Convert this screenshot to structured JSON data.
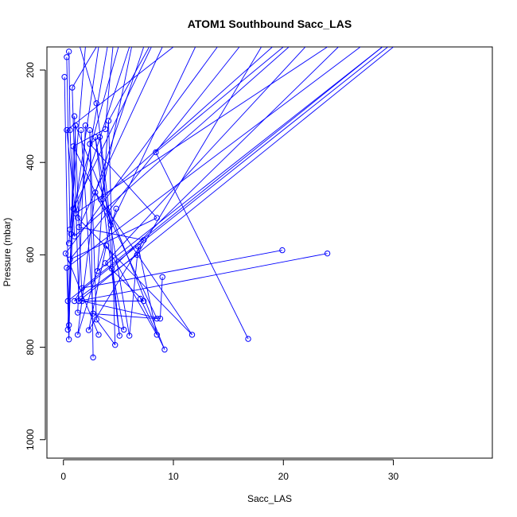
{
  "chart_data": {
    "type": "line",
    "title": "ATOM1 Southbound Sacc_LAS",
    "xlabel": "Sacc_LAS",
    "ylabel": "Pressure (mbar)",
    "xlim": [
      -1.5,
      39
    ],
    "ylim": [
      1040,
      150
    ],
    "y_axis_inverted": true,
    "x_ticks": [
      0,
      10,
      20,
      30
    ],
    "y_ticks": [
      200,
      400,
      600,
      800,
      1000
    ],
    "grid": false,
    "legend": "none",
    "color": "#0000ff",
    "marker": "open-circle",
    "series": [
      {
        "points": [
          [
            0.3,
            172
          ],
          [
            0.8,
            238
          ],
          [
            0.1,
            215
          ],
          [
            0.3,
            330
          ],
          [
            1.1,
            320
          ],
          [
            0.6,
            330
          ],
          [
            1.0,
            300
          ],
          [
            2.0,
            320
          ],
          [
            1.6,
            330
          ],
          [
            2.4,
            330
          ],
          [
            3.0,
            272
          ],
          [
            2.9,
            345
          ],
          [
            3.3,
            345
          ],
          [
            4.1,
            310
          ],
          [
            3.8,
            328
          ],
          [
            0.9,
            365
          ],
          [
            2.4,
            360
          ],
          [
            8.4,
            378
          ],
          [
            0.5,
            575
          ],
          [
            0.7,
            555
          ],
          [
            1.3,
            520
          ],
          [
            0.9,
            500
          ],
          [
            1.1,
            510
          ],
          [
            0.6,
            545
          ],
          [
            1.0,
            560
          ],
          [
            1.4,
            540
          ],
          [
            3.4,
            480
          ],
          [
            4.8,
            500
          ],
          [
            2.9,
            465
          ],
          [
            8.5,
            520
          ],
          [
            4.3,
            535
          ],
          [
            7.3,
            568
          ],
          [
            0.2,
            597
          ],
          [
            0.6,
            610
          ],
          [
            3.9,
            580
          ],
          [
            6.8,
            582
          ],
          [
            6.7,
            600
          ],
          [
            3.8,
            618
          ],
          [
            4.4,
            630
          ],
          [
            19.9,
            590
          ],
          [
            24.0,
            597
          ],
          [
            0.3,
            628
          ],
          [
            3.1,
            635
          ],
          [
            9.0,
            648
          ],
          [
            1.7,
            672
          ],
          [
            1.4,
            700
          ],
          [
            0.4,
            700
          ],
          [
            1.0,
            700
          ],
          [
            1.7,
            700
          ],
          [
            7.0,
            695
          ],
          [
            7.3,
            700
          ],
          [
            1.3,
            725
          ],
          [
            2.7,
            727
          ],
          [
            8.5,
            738
          ],
          [
            8.8,
            738
          ],
          [
            3.0,
            740
          ],
          [
            0.5,
            752
          ],
          [
            0.4,
            762
          ],
          [
            2.3,
            763
          ],
          [
            5.5,
            762
          ],
          [
            1.3,
            773
          ],
          [
            3.2,
            773
          ],
          [
            5.1,
            775
          ],
          [
            6.0,
            775
          ],
          [
            8.5,
            773
          ],
          [
            11.7,
            773
          ],
          [
            16.8,
            782
          ],
          [
            0.5,
            783
          ],
          [
            4.7,
            795
          ],
          [
            9.2,
            805
          ],
          [
            2.7,
            822
          ],
          [
            0.5,
            160
          ]
        ]
      }
    ],
    "segments": [
      [
        [
          0.3,
          172
        ],
        [
          0.6,
          545
        ]
      ],
      [
        [
          0.8,
          238
        ],
        [
          1.4,
          700
        ]
      ],
      [
        [
          0.1,
          215
        ],
        [
          0.5,
          752
        ]
      ],
      [
        [
          0.3,
          330
        ],
        [
          1.1,
          510
        ]
      ],
      [
        [
          1.1,
          320
        ],
        [
          0.4,
          762
        ]
      ],
      [
        [
          0.6,
          330
        ],
        [
          1.0,
          560
        ]
      ],
      [
        [
          1.0,
          300
        ],
        [
          1.7,
          700
        ]
      ],
      [
        [
          2.0,
          320
        ],
        [
          1.3,
          725
        ]
      ],
      [
        [
          1.6,
          330
        ],
        [
          2.7,
          727
        ]
      ],
      [
        [
          2.4,
          330
        ],
        [
          3.0,
          740
        ]
      ],
      [
        [
          3.0,
          272
        ],
        [
          4.3,
          535
        ]
      ],
      [
        [
          2.9,
          345
        ],
        [
          5.1,
          775
        ]
      ],
      [
        [
          3.3,
          345
        ],
        [
          2.4,
          360
        ]
      ],
      [
        [
          4.1,
          310
        ],
        [
          3.1,
          635
        ]
      ],
      [
        [
          3.8,
          328
        ],
        [
          0.9,
          365
        ]
      ],
      [
        [
          0.9,
          365
        ],
        [
          0.5,
          783
        ]
      ],
      [
        [
          2.4,
          360
        ],
        [
          8.5,
          520
        ]
      ],
      [
        [
          8.4,
          378
        ],
        [
          16.8,
          782
        ]
      ],
      [
        [
          0.5,
          575
        ],
        [
          2.0,
          150
        ]
      ],
      [
        [
          0.7,
          555
        ],
        [
          3.2,
          150
        ]
      ],
      [
        [
          1.3,
          520
        ],
        [
          4.0,
          150
        ]
      ],
      [
        [
          0.9,
          500
        ],
        [
          5.0,
          150
        ]
      ],
      [
        [
          1.1,
          510
        ],
        [
          6.0,
          150
        ]
      ],
      [
        [
          1.4,
          540
        ],
        [
          9.0,
          150
        ]
      ],
      [
        [
          3.4,
          480
        ],
        [
          6.2,
          150
        ]
      ],
      [
        [
          4.8,
          500
        ],
        [
          1.3,
          773
        ]
      ],
      [
        [
          2.9,
          465
        ],
        [
          11.7,
          773
        ]
      ],
      [
        [
          8.5,
          520
        ],
        [
          0.6,
          610
        ]
      ],
      [
        [
          4.3,
          535
        ],
        [
          12.0,
          150
        ]
      ],
      [
        [
          7.3,
          568
        ],
        [
          2.3,
          763
        ]
      ],
      [
        [
          0.2,
          597
        ],
        [
          14.0,
          150
        ]
      ],
      [
        [
          0.6,
          610
        ],
        [
          16.0,
          150
        ]
      ],
      [
        [
          3.9,
          580
        ],
        [
          8.5,
          773
        ]
      ],
      [
        [
          6.8,
          582
        ],
        [
          6.0,
          775
        ]
      ],
      [
        [
          6.7,
          600
        ],
        [
          18.0,
          150
        ]
      ],
      [
        [
          3.8,
          618
        ],
        [
          22.0,
          150
        ]
      ],
      [
        [
          4.4,
          630
        ],
        [
          25.0,
          150
        ]
      ],
      [
        [
          19.9,
          590
        ],
        [
          1.7,
          672
        ]
      ],
      [
        [
          24.0,
          597
        ],
        [
          1.4,
          700
        ]
      ],
      [
        [
          0.3,
          628
        ],
        [
          27.0,
          150
        ]
      ],
      [
        [
          3.1,
          635
        ],
        [
          29.0,
          150
        ]
      ],
      [
        [
          9.0,
          648
        ],
        [
          8.8,
          738
        ]
      ],
      [
        [
          1.7,
          672
        ],
        [
          1.0,
          700
        ]
      ],
      [
        [
          1.4,
          700
        ],
        [
          30.0,
          150
        ]
      ],
      [
        [
          0.4,
          700
        ],
        [
          29.5,
          150
        ]
      ],
      [
        [
          1.0,
          700
        ],
        [
          6.7,
          600
        ]
      ],
      [
        [
          1.7,
          700
        ],
        [
          7.3,
          700
        ]
      ],
      [
        [
          7.0,
          695
        ],
        [
          9.2,
          805
        ]
      ],
      [
        [
          7.3,
          700
        ],
        [
          3.8,
          618
        ]
      ],
      [
        [
          1.3,
          725
        ],
        [
          8.5,
          738
        ]
      ],
      [
        [
          2.7,
          727
        ],
        [
          5.5,
          762
        ]
      ],
      [
        [
          8.5,
          738
        ],
        [
          3.4,
          480
        ]
      ],
      [
        [
          8.8,
          738
        ],
        [
          1.7,
          700
        ]
      ],
      [
        [
          3.0,
          740
        ],
        [
          4.7,
          795
        ]
      ],
      [
        [
          0.5,
          752
        ],
        [
          0.9,
          500
        ]
      ],
      [
        [
          0.4,
          762
        ],
        [
          0.7,
          555
        ]
      ],
      [
        [
          2.3,
          763
        ],
        [
          3.9,
          580
        ]
      ],
      [
        [
          5.5,
          762
        ],
        [
          4.4,
          630
        ]
      ],
      [
        [
          1.3,
          773
        ],
        [
          2.9,
          465
        ]
      ],
      [
        [
          3.2,
          773
        ],
        [
          0.2,
          597
        ]
      ],
      [
        [
          5.1,
          775
        ],
        [
          3.3,
          345
        ]
      ],
      [
        [
          6.0,
          775
        ],
        [
          2.9,
          345
        ]
      ],
      [
        [
          8.5,
          773
        ],
        [
          6.8,
          582
        ]
      ],
      [
        [
          11.7,
          773
        ],
        [
          1.3,
          520
        ]
      ],
      [
        [
          0.5,
          783
        ],
        [
          0.3,
          628
        ]
      ],
      [
        [
          4.7,
          795
        ],
        [
          4.1,
          310
        ]
      ],
      [
        [
          9.2,
          805
        ],
        [
          1.1,
          320
        ]
      ],
      [
        [
          2.7,
          822
        ],
        [
          2.4,
          330
        ]
      ],
      [
        [
          0.5,
          160
        ],
        [
          0.6,
          330
        ]
      ],
      [
        [
          1.4,
          540
        ],
        [
          7.3,
          568
        ]
      ],
      [
        [
          4.3,
          535
        ],
        [
          0.9,
          365
        ]
      ],
      [
        [
          3.4,
          480
        ],
        [
          19.0,
          150
        ]
      ],
      [
        [
          2.9,
          465
        ],
        [
          7.3,
          150
        ]
      ],
      [
        [
          0.8,
          238
        ],
        [
          3.0,
          150
        ]
      ],
      [
        [
          1.1,
          510
        ],
        [
          24.0,
          150
        ]
      ],
      [
        [
          3.8,
          328
        ],
        [
          4.5,
          150
        ]
      ],
      [
        [
          4.1,
          310
        ],
        [
          7.8,
          150
        ]
      ],
      [
        [
          3.0,
          272
        ],
        [
          1.5,
          150
        ]
      ],
      [
        [
          8.4,
          378
        ],
        [
          20.0,
          150
        ]
      ],
      [
        [
          0.9,
          500
        ],
        [
          8.0,
          150
        ]
      ],
      [
        [
          1.0,
          560
        ],
        [
          20.5,
          150
        ]
      ],
      [
        [
          1.7,
          672
        ],
        [
          29.0,
          150
        ]
      ],
      [
        [
          0.3,
          330
        ],
        [
          10.0,
          150
        ]
      ]
    ]
  }
}
